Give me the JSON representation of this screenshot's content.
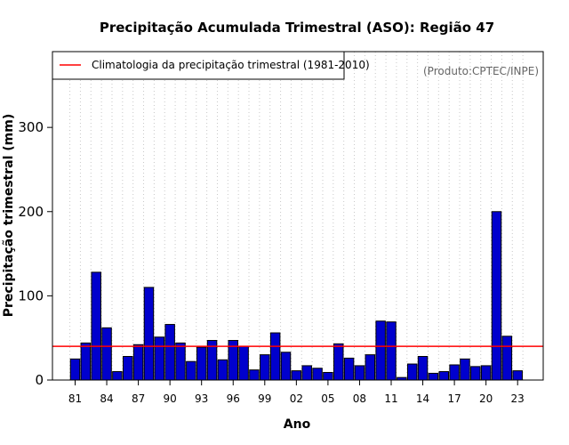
{
  "chart_data": {
    "type": "bar",
    "title": "Precipitação Acumulada Trimestral (ASO): Região 47",
    "xlabel": "Ano",
    "ylabel": "Precipitação trimestral (mm)",
    "source_note": "(Produto:CPTEC/INPE)",
    "legend_label": "Climatologia da precipitação trimestral (1981-2010)",
    "legend_position": "top-left",
    "ylim": [
      0,
      390
    ],
    "yticks": [
      0,
      100,
      200,
      300
    ],
    "climatology": 40,
    "years": [
      1981,
      1982,
      1983,
      1984,
      1985,
      1986,
      1987,
      1988,
      1989,
      1990,
      1991,
      1992,
      1993,
      1994,
      1995,
      1996,
      1997,
      1998,
      1999,
      2000,
      2001,
      2002,
      2003,
      2004,
      2005,
      2006,
      2007,
      2008,
      2009,
      2010,
      2011,
      2012,
      2013,
      2014,
      2015,
      2016,
      2017,
      2018,
      2019,
      2020,
      2021,
      2022,
      2023
    ],
    "values": [
      25,
      44,
      128,
      62,
      10,
      28,
      42,
      110,
      51,
      66,
      44,
      22,
      39,
      47,
      24,
      47,
      40,
      12,
      30,
      56,
      33,
      11,
      17,
      14,
      9,
      43,
      26,
      17,
      30,
      70,
      69,
      3,
      19,
      28,
      8,
      10,
      18,
      25,
      16,
      17,
      200,
      52,
      11
    ],
    "xtick_labels": [
      "81",
      "84",
      "87",
      "90",
      "93",
      "96",
      "99",
      "02",
      "05",
      "08",
      "11",
      "14",
      "17",
      "20",
      "23"
    ],
    "xtick_years": [
      1981,
      1984,
      1987,
      1990,
      1993,
      1996,
      1999,
      2002,
      2005,
      2008,
      2011,
      2014,
      2017,
      2020,
      2023
    ],
    "colors": {
      "bar_fill": "#0000CD",
      "bar_stroke": "#000000",
      "climatology_line": "#FF0000",
      "grid": "#C8C8C8"
    }
  }
}
